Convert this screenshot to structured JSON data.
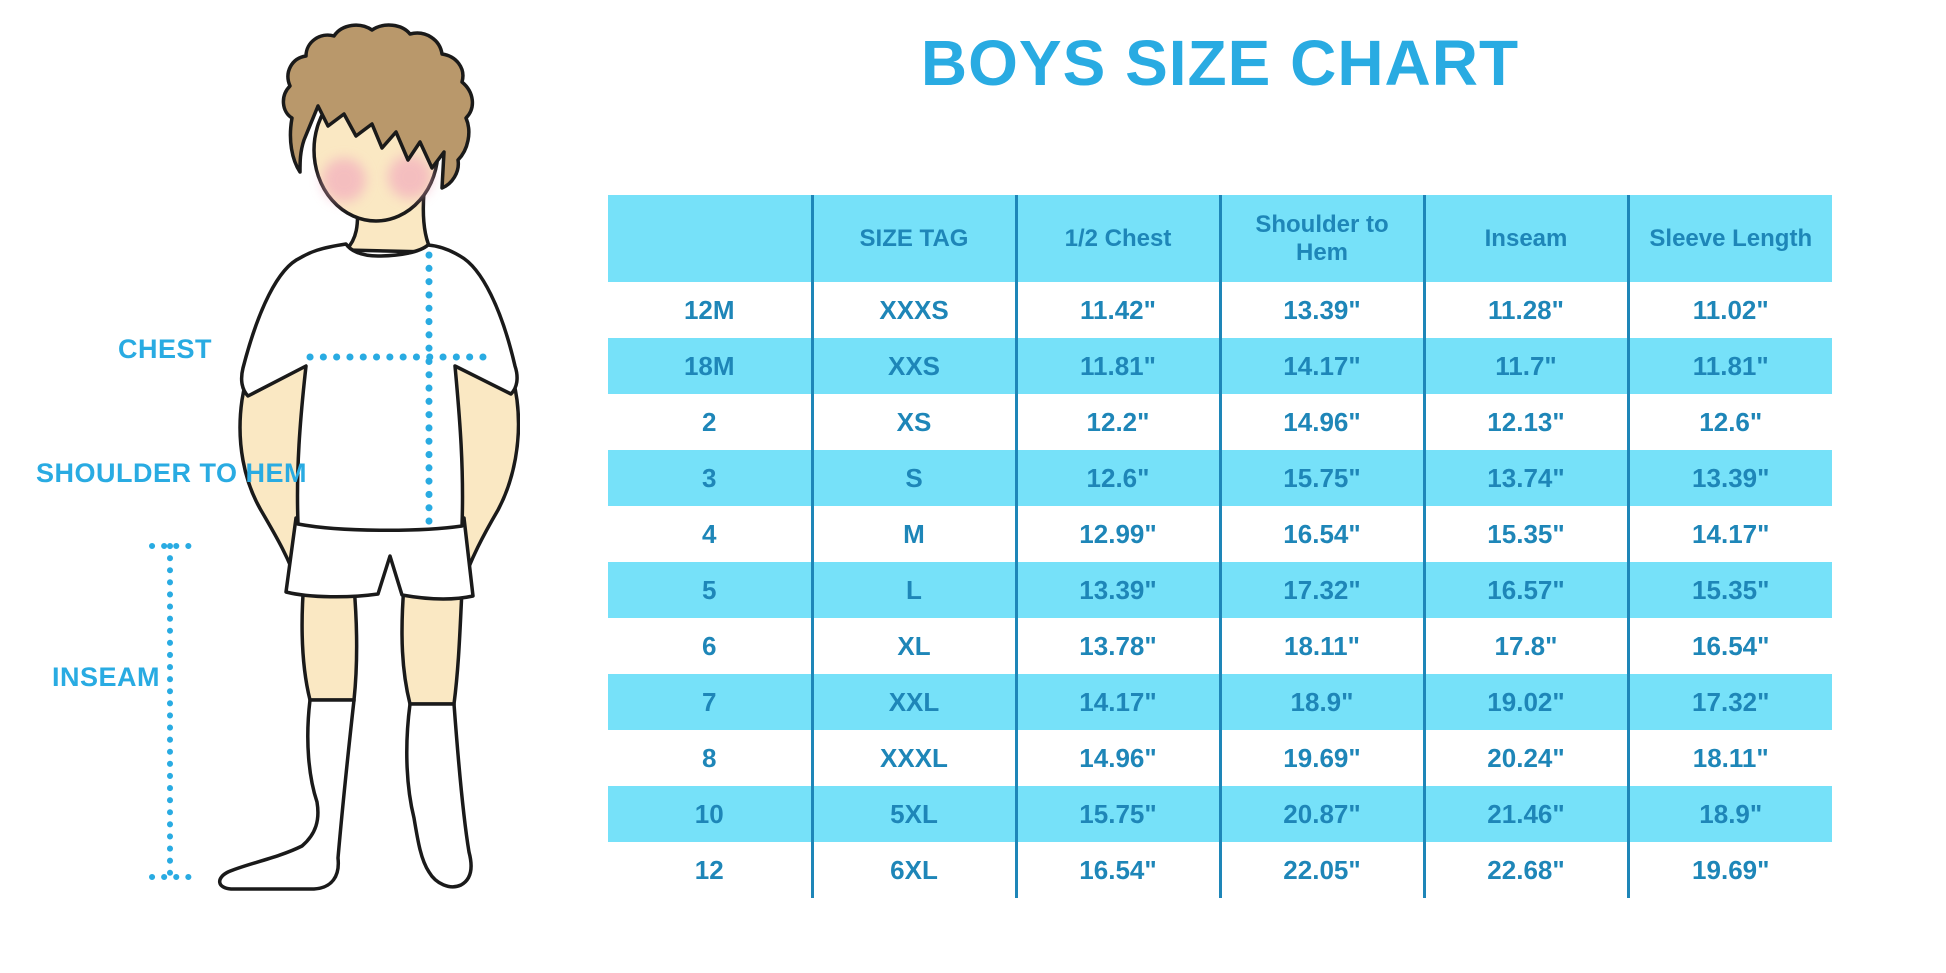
{
  "title": "BOYS SIZE CHART",
  "colors": {
    "accent_blue": "#29ABE2",
    "table_text_blue": "#1E86B8",
    "row_stripe_cyan": "#76E1F9",
    "separator_blue": "#1E86B8",
    "skin": "#FAE8C3",
    "hair": "#B9986B",
    "blush": "#F2A8BE",
    "outline": "#1A1A1A",
    "background": "#FFFFFF"
  },
  "figure": {
    "labels": {
      "chest": "CHEST",
      "shoulder_to_hem": "SHOULDER TO HEM",
      "inseam": "INSEAM"
    },
    "icons": [
      "boy-illustration",
      "chest-dotted-measure-line",
      "shoulder-to-hem-dotted-measure-line",
      "inseam-dotted-measure-line"
    ]
  },
  "chart_data": {
    "type": "table",
    "title": "BOYS SIZE CHART",
    "columns": [
      "",
      "SIZE TAG",
      "1/2 Chest",
      "Shoulder to Hem",
      "Inseam",
      "Sleeve Length"
    ],
    "rows": [
      [
        "12M",
        "XXXS",
        "11.42\"",
        "13.39\"",
        "11.28\"",
        "11.02\""
      ],
      [
        "18M",
        "XXS",
        "11.81\"",
        "14.17\"",
        "11.7\"",
        "11.81\""
      ],
      [
        "2",
        "XS",
        "12.2\"",
        "14.96\"",
        "12.13\"",
        "12.6\""
      ],
      [
        "3",
        "S",
        "12.6\"",
        "15.75\"",
        "13.74\"",
        "13.39\""
      ],
      [
        "4",
        "M",
        "12.99\"",
        "16.54\"",
        "15.35\"",
        "14.17\""
      ],
      [
        "5",
        "L",
        "13.39\"",
        "17.32\"",
        "16.57\"",
        "15.35\""
      ],
      [
        "6",
        "XL",
        "13.78\"",
        "18.11\"",
        "17.8\"",
        "16.54\""
      ],
      [
        "7",
        "XXL",
        "14.17\"",
        "18.9\"",
        "19.02\"",
        "17.32\""
      ],
      [
        "8",
        "XXXL",
        "14.96\"",
        "19.69\"",
        "20.24\"",
        "18.11\""
      ],
      [
        "10",
        "5XL",
        "15.75\"",
        "20.87\"",
        "21.46\"",
        "18.9\""
      ],
      [
        "12",
        "6XL",
        "16.54\"",
        "22.05\"",
        "22.68\"",
        "19.69\""
      ]
    ],
    "layout": {
      "row_striping": "alternating white and light cyan, header cyan",
      "grid": "vertical column separators only",
      "legend": "none"
    }
  }
}
